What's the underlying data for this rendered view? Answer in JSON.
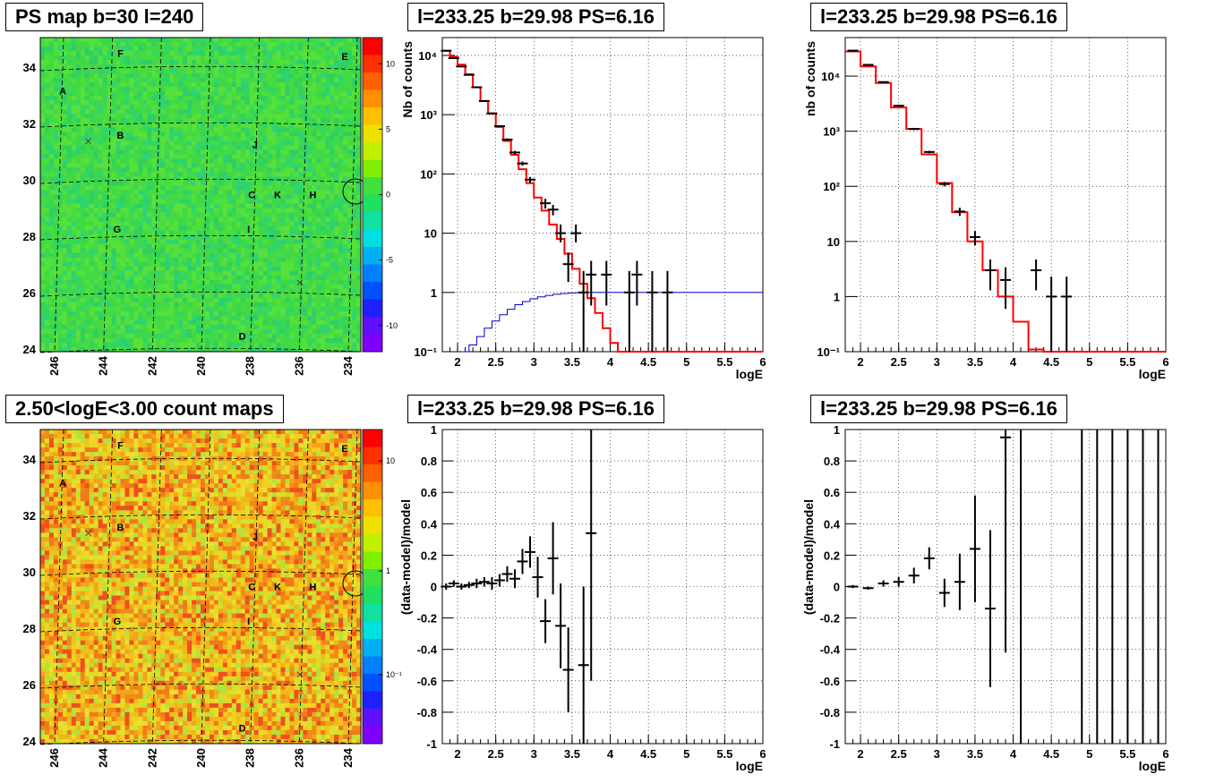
{
  "panels": {
    "map1_title": "PS map b=30 l=240",
    "map2_title": "2.50<logE<3.00 count maps",
    "spec1_title": "l=233.25 b=29.98 PS=6.16",
    "spec2_title": "l=233.25 b=29.98 PS=6.16",
    "res1_title": "l=233.25 b=29.98 PS=6.16",
    "res2_title": "l=233.25 b=29.98 PS=6.16"
  },
  "colors": {
    "model_line": "#ff0000",
    "acceptance_line": "#0000cc",
    "points": "#000000"
  },
  "chart_data": [
    {
      "type": "heatmap",
      "id": "ps_map",
      "title": "PS map b=30 l=240",
      "x_ticks": [
        "246",
        "244",
        "242",
        "240",
        "238",
        "236",
        "234"
      ],
      "y_ticks": [
        "24",
        "26",
        "28",
        "30",
        "32",
        "34"
      ],
      "colorbar_ticks": [
        "10",
        "5",
        "0",
        "-5",
        "-10"
      ],
      "colorbar_range": [
        -12,
        12
      ],
      "source_labels": [
        "F",
        "E",
        "A",
        "B",
        "J",
        "C",
        "K",
        "H",
        "G",
        "I",
        "D"
      ]
    },
    {
      "type": "heatmap",
      "id": "count_map",
      "title": "2.50<logE<3.00 count maps",
      "x_ticks": [
        "246",
        "244",
        "242",
        "240",
        "238",
        "236",
        "234"
      ],
      "y_ticks": [
        "24",
        "26",
        "28",
        "30",
        "32",
        "34"
      ],
      "colorbar_ticks": [
        "10",
        "1",
        "10⁻¹"
      ],
      "source_labels": [
        "F",
        "E",
        "A",
        "B",
        "J",
        "C",
        "K",
        "H",
        "G",
        "I",
        "D"
      ]
    },
    {
      "type": "line",
      "id": "spectrum_left",
      "title": "l=233.25 b=29.98 PS=6.16",
      "xlabel": "logE",
      "ylabel": "Nb of counts",
      "xlim": [
        1.8,
        6.0
      ],
      "ylim": [
        0.1,
        20000
      ],
      "log_y": true,
      "x_ticks": [
        "2",
        "2.5",
        "3",
        "3.5",
        "4",
        "4.5",
        "5",
        "5.5",
        "6"
      ],
      "y_ticks": [
        "10⁻¹",
        "1",
        "10",
        "10²",
        "10³",
        "10⁴"
      ],
      "model_bins": {
        "edges": [
          1.8,
          1.9,
          2.0,
          2.1,
          2.2,
          2.3,
          2.4,
          2.5,
          2.6,
          2.7,
          2.8,
          2.9,
          3.0,
          3.1,
          3.2,
          3.3,
          3.4,
          3.5,
          3.6,
          3.7,
          3.8,
          3.9,
          4.0,
          4.1,
          4.2,
          4.3,
          4.4,
          4.5,
          4.6,
          4.7,
          4.8,
          4.9,
          5.0,
          5.1,
          5.2,
          5.3,
          5.4,
          5.5,
          5.6,
          5.7,
          5.8,
          5.9,
          6.0
        ],
        "values": [
          12000,
          9500,
          7000,
          4800,
          2900,
          1700,
          1050,
          620,
          360,
          210,
          120,
          70,
          40,
          24,
          14,
          8,
          4.5,
          2.5,
          1.4,
          0.8,
          0.45,
          0.25,
          0.14,
          0.1,
          0.1,
          0.1,
          0.1,
          0.1,
          0.1,
          0.1,
          0.1,
          0.1,
          0.1,
          0.1,
          0.1,
          0.1,
          0.1,
          0.1,
          0.1,
          0.1,
          0.1,
          0.1
        ]
      },
      "acceptance_curve": {
        "x": [
          2.05,
          2.15,
          2.25,
          2.35,
          2.45,
          2.55,
          2.65,
          2.75,
          2.85,
          2.95,
          3.05,
          3.15,
          3.25,
          3.35,
          3.45,
          3.55,
          3.65,
          3.75,
          3.85,
          3.95,
          4.1,
          4.5,
          5.0,
          5.5,
          6.0
        ],
        "y": [
          0.1,
          0.13,
          0.18,
          0.25,
          0.33,
          0.42,
          0.52,
          0.62,
          0.7,
          0.78,
          0.84,
          0.89,
          0.93,
          0.96,
          0.98,
          0.99,
          1.0,
          1.0,
          1.0,
          1.0,
          1.0,
          1.0,
          1.0,
          1.0,
          1.0
        ]
      },
      "points": [
        {
          "x": 1.85,
          "y": 12000,
          "lo": 11800,
          "hi": 12200
        },
        {
          "x": 1.95,
          "y": 9000,
          "lo": 8800,
          "hi": 9200
        },
        {
          "x": 2.05,
          "y": 6500,
          "lo": 6350,
          "hi": 6650
        },
        {
          "x": 2.15,
          "y": 4700,
          "lo": 4600,
          "hi": 4800
        },
        {
          "x": 2.25,
          "y": 2900,
          "lo": 2800,
          "hi": 3000
        },
        {
          "x": 2.35,
          "y": 1700,
          "lo": 1650,
          "hi": 1750
        },
        {
          "x": 2.45,
          "y": 1050,
          "lo": 1020,
          "hi": 1080
        },
        {
          "x": 2.55,
          "y": 640,
          "lo": 615,
          "hi": 665
        },
        {
          "x": 2.65,
          "y": 380,
          "lo": 360,
          "hi": 400
        },
        {
          "x": 2.75,
          "y": 230,
          "lo": 215,
          "hi": 245
        },
        {
          "x": 2.85,
          "y": 150,
          "lo": 138,
          "hi": 162
        },
        {
          "x": 2.95,
          "y": 80,
          "lo": 71,
          "hi": 89
        },
        {
          "x": 3.15,
          "y": 32,
          "lo": 26,
          "hi": 38
        },
        {
          "x": 3.25,
          "y": 25,
          "lo": 20,
          "hi": 30
        },
        {
          "x": 3.35,
          "y": 10,
          "lo": 7,
          "hi": 14
        },
        {
          "x": 3.45,
          "y": 3,
          "lo": 1.5,
          "hi": 4.7
        },
        {
          "x": 3.55,
          "y": 10,
          "lo": 7,
          "hi": 14
        },
        {
          "x": 3.65,
          "y": 1,
          "lo": 0.1,
          "hi": 2.3
        },
        {
          "x": 3.75,
          "y": 2,
          "lo": 0.6,
          "hi": 3.4
        },
        {
          "x": 3.95,
          "y": 2,
          "lo": 0.6,
          "hi": 3.4
        },
        {
          "x": 4.25,
          "y": 1,
          "lo": 0.1,
          "hi": 2.3
        },
        {
          "x": 4.35,
          "y": 2,
          "lo": 0.6,
          "hi": 3.4
        },
        {
          "x": 4.55,
          "y": 1,
          "lo": 0.1,
          "hi": 2.3
        },
        {
          "x": 4.75,
          "y": 1,
          "lo": 0.1,
          "hi": 2.3
        }
      ]
    },
    {
      "type": "line",
      "id": "spectrum_right",
      "title": "l=233.25 b=29.98 PS=6.16",
      "xlabel": "logE",
      "ylabel": "nb of counts",
      "xlim": [
        1.8,
        6.0
      ],
      "ylim": [
        0.1,
        50000
      ],
      "log_y": true,
      "x_ticks": [
        "2",
        "2.5",
        "3",
        "3.5",
        "4",
        "4.5",
        "5",
        "5.5",
        "6"
      ],
      "y_ticks": [
        "10⁻¹",
        "1",
        "10",
        "10²",
        "10³",
        "10⁴"
      ],
      "model_bins": {
        "edges": [
          1.8,
          2.0,
          2.2,
          2.4,
          2.6,
          2.8,
          3.0,
          3.2,
          3.4,
          3.6,
          3.8,
          4.0,
          4.2,
          4.4,
          4.6,
          4.8,
          5.0,
          5.2,
          5.4,
          5.6,
          5.8,
          6.0
        ],
        "values": [
          28000,
          15000,
          7500,
          2700,
          1100,
          380,
          115,
          34,
          10,
          3,
          1,
          0.35,
          0.11,
          0.1,
          0.1,
          0.1,
          0.1,
          0.1,
          0.1,
          0.1,
          0.1
        ]
      },
      "points": [
        {
          "x": 1.9,
          "y": 29000,
          "lo": 28500,
          "hi": 29500
        },
        {
          "x": 2.1,
          "y": 16000,
          "lo": 15700,
          "hi": 16300
        },
        {
          "x": 2.3,
          "y": 7800,
          "lo": 7600,
          "hi": 8000
        },
        {
          "x": 2.5,
          "y": 2900,
          "lo": 2800,
          "hi": 3000
        },
        {
          "x": 2.7,
          "y": 1100,
          "lo": 1050,
          "hi": 1150
        },
        {
          "x": 2.9,
          "y": 420,
          "lo": 400,
          "hi": 440
        },
        {
          "x": 3.1,
          "y": 110,
          "lo": 100,
          "hi": 120
        },
        {
          "x": 3.3,
          "y": 35,
          "lo": 29,
          "hi": 41
        },
        {
          "x": 3.5,
          "y": 12,
          "lo": 8.5,
          "hi": 15.5
        },
        {
          "x": 3.7,
          "y": 3,
          "lo": 1.3,
          "hi": 4.7
        },
        {
          "x": 3.9,
          "y": 2,
          "lo": 0.6,
          "hi": 3.4
        },
        {
          "x": 4.3,
          "y": 3,
          "lo": 1.3,
          "hi": 4.7
        },
        {
          "x": 4.5,
          "y": 1,
          "lo": 0.1,
          "hi": 2.3
        },
        {
          "x": 4.7,
          "y": 1,
          "lo": 0.1,
          "hi": 2.3
        }
      ]
    },
    {
      "type": "scatter",
      "id": "residual_left",
      "title": "l=233.25 b=29.98 PS=6.16",
      "xlabel": "logE",
      "ylabel": "(data-model)/model",
      "xlim": [
        1.8,
        6.0
      ],
      "ylim": [
        -1,
        1
      ],
      "x_ticks": [
        "2",
        "2.5",
        "3",
        "3.5",
        "4",
        "4.5",
        "5",
        "5.5",
        "6"
      ],
      "y_ticks": [
        "1",
        "0.8",
        "0.6",
        "0.4",
        "0.2",
        "0",
        "-0.2",
        "-0.4",
        "-0.6",
        "-0.8",
        "-1"
      ],
      "points": [
        {
          "x": 1.85,
          "y": 0.0,
          "lo": -0.02,
          "hi": 0.02
        },
        {
          "x": 1.95,
          "y": 0.02,
          "lo": 0.0,
          "hi": 0.04
        },
        {
          "x": 2.05,
          "y": 0.0,
          "lo": -0.02,
          "hi": 0.02
        },
        {
          "x": 2.15,
          "y": 0.01,
          "lo": -0.01,
          "hi": 0.03
        },
        {
          "x": 2.25,
          "y": 0.02,
          "lo": -0.01,
          "hi": 0.05
        },
        {
          "x": 2.35,
          "y": 0.03,
          "lo": 0.0,
          "hi": 0.06
        },
        {
          "x": 2.45,
          "y": 0.02,
          "lo": -0.02,
          "hi": 0.06
        },
        {
          "x": 2.55,
          "y": 0.04,
          "lo": 0.0,
          "hi": 0.08
        },
        {
          "x": 2.65,
          "y": 0.08,
          "lo": 0.03,
          "hi": 0.13
        },
        {
          "x": 2.75,
          "y": 0.05,
          "lo": -0.01,
          "hi": 0.11
        },
        {
          "x": 2.85,
          "y": 0.16,
          "lo": 0.08,
          "hi": 0.24
        },
        {
          "x": 2.95,
          "y": 0.22,
          "lo": 0.12,
          "hi": 0.32
        },
        {
          "x": 3.05,
          "y": 0.06,
          "lo": -0.07,
          "hi": 0.19
        },
        {
          "x": 3.15,
          "y": -0.22,
          "lo": -0.36,
          "hi": -0.08
        },
        {
          "x": 3.25,
          "y": 0.18,
          "lo": -0.05,
          "hi": 0.41
        },
        {
          "x": 3.35,
          "y": -0.25,
          "lo": -0.52,
          "hi": 0.02
        },
        {
          "x": 3.45,
          "y": -0.53,
          "lo": -0.8,
          "hi": -0.26
        },
        {
          "x": 3.65,
          "y": -0.5,
          "lo": -1.0,
          "hi": 0.0
        },
        {
          "x": 3.75,
          "y": 0.34,
          "lo": -0.6,
          "hi": 1.0
        }
      ]
    },
    {
      "type": "scatter",
      "id": "residual_right",
      "title": "l=233.25 b=29.98 PS=6.16",
      "xlabel": "logE",
      "ylabel": "(data-model)/model",
      "xlim": [
        1.8,
        6.0
      ],
      "ylim": [
        -1,
        1
      ],
      "x_ticks": [
        "2",
        "2.5",
        "3",
        "3.5",
        "4",
        "4.5",
        "5",
        "5.5",
        "6"
      ],
      "y_ticks": [
        "1",
        "0.8",
        "0.6",
        "0.4",
        "0.2",
        "0",
        "-0.2",
        "-0.4",
        "-0.6",
        "-0.8",
        "-1"
      ],
      "points": [
        {
          "x": 1.9,
          "y": 0.0,
          "lo": -0.01,
          "hi": 0.01
        },
        {
          "x": 2.1,
          "y": -0.01,
          "lo": -0.02,
          "hi": 0.0
        },
        {
          "x": 2.3,
          "y": 0.02,
          "lo": 0.0,
          "hi": 0.04
        },
        {
          "x": 2.5,
          "y": 0.03,
          "lo": 0.0,
          "hi": 0.06
        },
        {
          "x": 2.7,
          "y": 0.07,
          "lo": 0.02,
          "hi": 0.12
        },
        {
          "x": 2.9,
          "y": 0.18,
          "lo": 0.11,
          "hi": 0.25
        },
        {
          "x": 3.1,
          "y": -0.04,
          "lo": -0.13,
          "hi": 0.05
        },
        {
          "x": 3.3,
          "y": 0.03,
          "lo": -0.15,
          "hi": 0.21
        },
        {
          "x": 3.5,
          "y": 0.24,
          "lo": -0.1,
          "hi": 0.58
        },
        {
          "x": 3.7,
          "y": -0.14,
          "lo": -0.64,
          "hi": 0.36
        },
        {
          "x": 3.9,
          "y": 0.95,
          "lo": -0.42,
          "hi": 1.0
        },
        {
          "x": 4.1,
          "y": null,
          "lo": -1.0,
          "hi": 1.0
        },
        {
          "x": 4.9,
          "y": null,
          "lo": -1.0,
          "hi": 1.0
        },
        {
          "x": 5.1,
          "y": null,
          "lo": -1.0,
          "hi": 1.0
        },
        {
          "x": 5.3,
          "y": null,
          "lo": -1.0,
          "hi": 1.0
        },
        {
          "x": 5.5,
          "y": null,
          "lo": -1.0,
          "hi": 1.0
        },
        {
          "x": 5.7,
          "y": null,
          "lo": -1.0,
          "hi": 1.0
        },
        {
          "x": 5.9,
          "y": null,
          "lo": -1.0,
          "hi": 1.0
        }
      ]
    }
  ]
}
